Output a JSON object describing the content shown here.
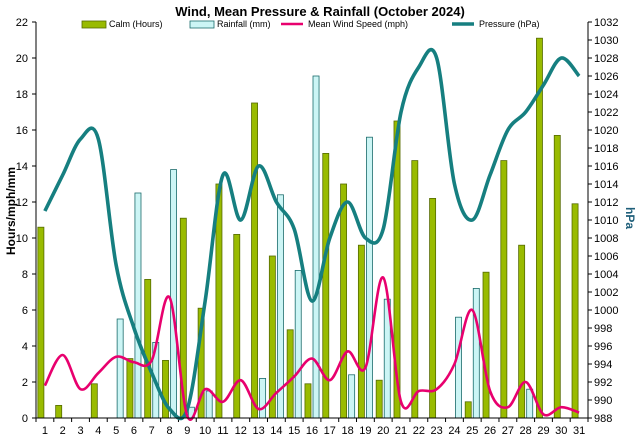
{
  "chart_data": {
    "type": "bar",
    "title": "Wind, Mean Pressure & Rainfall (October 2024)",
    "ylabel": "Hours/mph/mm",
    "ylabel_right": "hPa",
    "ylim": [
      0,
      22
    ],
    "ylim_right": [
      988,
      1032
    ],
    "x": [
      1,
      2,
      3,
      4,
      5,
      6,
      7,
      8,
      9,
      10,
      11,
      12,
      13,
      14,
      15,
      16,
      17,
      18,
      19,
      20,
      21,
      22,
      23,
      24,
      25,
      26,
      27,
      28,
      29,
      30,
      31
    ],
    "legend_placement": "top",
    "grid": false,
    "series": [
      {
        "name": "Calm (Hours)",
        "kind": "bar",
        "axis": "left",
        "color": "#99bb00",
        "values": [
          10.6,
          0.7,
          0,
          1.9,
          0,
          3.3,
          7.7,
          3.2,
          11.1,
          6.1,
          13.0,
          10.2,
          17.5,
          9.0,
          4.9,
          1.9,
          14.7,
          13.0,
          9.6,
          2.1,
          16.5,
          14.3,
          12.2,
          0,
          0.9,
          8.1,
          14.3,
          9.6,
          21.1,
          15.7,
          11.9
        ]
      },
      {
        "name": "Rainfall (mm)",
        "kind": "bar",
        "axis": "left",
        "color": "#ccf5f5",
        "values": [
          0,
          0,
          0,
          0,
          5.5,
          12.5,
          4.2,
          13.8,
          0.6,
          1.5,
          0,
          0,
          2.2,
          12.4,
          8.2,
          19.0,
          0,
          2.4,
          15.6,
          6.6,
          0,
          0,
          0,
          5.6,
          7.2,
          0,
          0,
          1.6,
          0,
          0,
          0
        ]
      },
      {
        "name": "Mean Wind Speed (mph)",
        "kind": "line",
        "axis": "left",
        "color": "#e8006e",
        "values": [
          1.8,
          3.5,
          1.6,
          2.5,
          3.4,
          3.1,
          3.2,
          6.7,
          0.1,
          1.6,
          0.9,
          2.1,
          0.5,
          1.4,
          2.3,
          3.3,
          2.1,
          3.7,
          2.8,
          7.8,
          0.9,
          1.5,
          1.6,
          3.0,
          6.0,
          1.5,
          0.6,
          2.0,
          0.2,
          0.6,
          0.3
        ]
      },
      {
        "name": "Pressure (hPa)",
        "kind": "line",
        "axis": "right",
        "color": "#167f80",
        "values": [
          1011,
          1015,
          1019,
          1019,
          1005,
          998,
          993,
          989,
          989,
          1001,
          1015,
          1010,
          1016,
          1012,
          1009,
          1001,
          1008,
          1012,
          1008,
          1009,
          1022,
          1027,
          1028,
          1014,
          1010,
          1015,
          1020,
          1022,
          1025,
          1028,
          1026
        ]
      }
    ]
  }
}
